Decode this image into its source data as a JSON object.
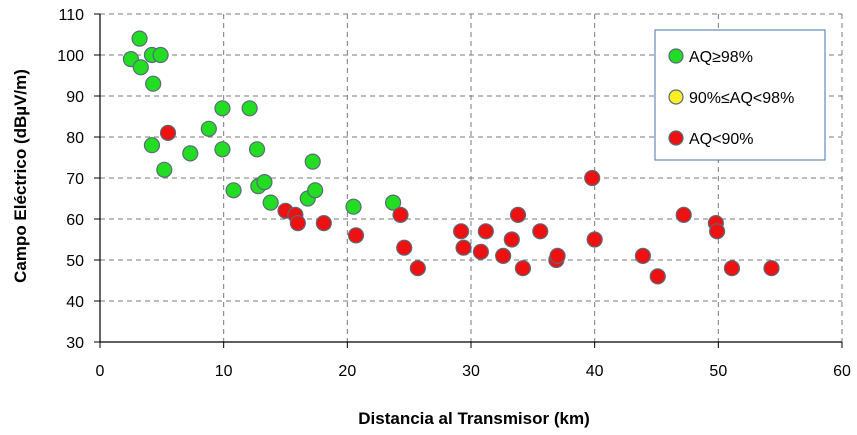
{
  "chart_data": {
    "type": "scatter",
    "xlabel": "Distancia al Transmisor (km)",
    "ylabel": "Campo Eléctrico (dBµV/m)",
    "xlim": [
      0,
      60
    ],
    "ylim": [
      30,
      110
    ],
    "x_ticks": [
      "0",
      "10",
      "20",
      "30",
      "40",
      "50",
      "60"
    ],
    "y_ticks": [
      "30",
      "40",
      "50",
      "60",
      "70",
      "80",
      "90",
      "100",
      "110"
    ],
    "grid": true,
    "legend_position": "top-right",
    "series": [
      {
        "name": "AQ≥98%",
        "color": "#22dd22",
        "points": [
          [
            2.5,
            99
          ],
          [
            3.2,
            104
          ],
          [
            3.3,
            97
          ],
          [
            4.2,
            100
          ],
          [
            4.3,
            93
          ],
          [
            4.9,
            100
          ],
          [
            4.2,
            78
          ],
          [
            5.2,
            72
          ],
          [
            7.3,
            76
          ],
          [
            8.8,
            82
          ],
          [
            9.9,
            87
          ],
          [
            9.9,
            77
          ],
          [
            10.8,
            67
          ],
          [
            12.1,
            87
          ],
          [
            12.7,
            77
          ],
          [
            12.8,
            68
          ],
          [
            13.3,
            69
          ],
          [
            13.8,
            64
          ],
          [
            16.8,
            65
          ],
          [
            17.2,
            74
          ],
          [
            17.4,
            67
          ],
          [
            20.5,
            63
          ],
          [
            23.7,
            64
          ]
        ]
      },
      {
        "name": "90%≤AQ<98%",
        "color": "#ffee22",
        "points": []
      },
      {
        "name": "AQ<90%",
        "color": "#ee1111",
        "points": [
          [
            5.5,
            81
          ],
          [
            15.0,
            62
          ],
          [
            15.8,
            61
          ],
          [
            16.0,
            59
          ],
          [
            18.1,
            59
          ],
          [
            20.7,
            56
          ],
          [
            24.3,
            61
          ],
          [
            24.6,
            53
          ],
          [
            25.7,
            48
          ],
          [
            29.2,
            57
          ],
          [
            29.4,
            53
          ],
          [
            30.8,
            52
          ],
          [
            31.2,
            57
          ],
          [
            32.6,
            51
          ],
          [
            33.3,
            55
          ],
          [
            33.8,
            61
          ],
          [
            34.2,
            48
          ],
          [
            35.6,
            57
          ],
          [
            36.9,
            50
          ],
          [
            37.0,
            51
          ],
          [
            39.8,
            70
          ],
          [
            40.0,
            55
          ],
          [
            43.9,
            51
          ],
          [
            45.1,
            46
          ],
          [
            47.2,
            61
          ],
          [
            49.8,
            59
          ],
          [
            49.9,
            57
          ],
          [
            51.1,
            48
          ],
          [
            54.3,
            48
          ]
        ]
      }
    ]
  }
}
